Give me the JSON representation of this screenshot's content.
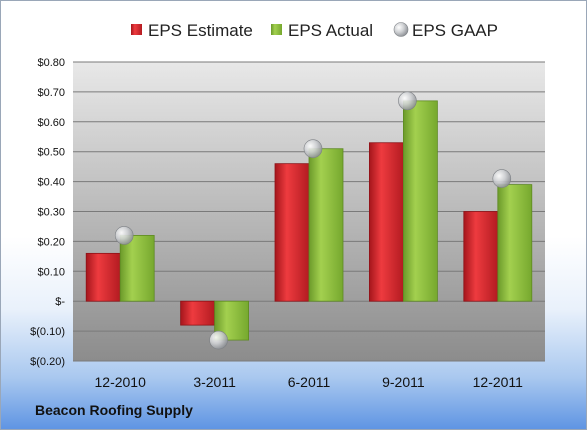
{
  "chart_data": {
    "type": "bar",
    "categories": [
      "12-2010",
      "3-2011",
      "6-2011",
      "9-2011",
      "12-2011"
    ],
    "series": [
      {
        "name": "EPS Estimate",
        "type": "bar",
        "color": "#d0242c",
        "values": [
          0.16,
          -0.08,
          0.46,
          0.53,
          0.3
        ]
      },
      {
        "name": "EPS Actual",
        "type": "bar",
        "color": "#84b437",
        "values": [
          0.22,
          -0.13,
          0.51,
          0.67,
          0.39
        ]
      },
      {
        "name": "EPS GAAP",
        "type": "scatter",
        "color": "#b9bcc0",
        "values": [
          0.22,
          -0.13,
          0.51,
          0.67,
          0.41
        ]
      }
    ],
    "ylim": [
      -0.2,
      0.8
    ],
    "yticks": [
      0.8,
      0.7,
      0.6,
      0.5,
      0.4,
      0.3,
      0.2,
      0.1,
      0,
      -0.1,
      -0.2
    ],
    "ytick_labels": [
      "$0.80",
      "$0.70",
      "$0.60",
      "$0.50",
      "$0.40",
      "$0.30",
      "$0.20",
      "$0.10",
      "$-",
      "$(0.10)",
      "$(0.20)"
    ],
    "grid": true,
    "legend_position": "top"
  },
  "company": "Beacon Roofing Supply"
}
